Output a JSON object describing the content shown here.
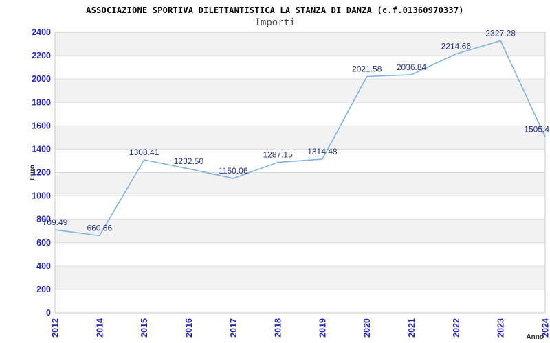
{
  "chart_data": {
    "type": "line",
    "title": "ASSOCIAZIONE SPORTIVA DILETTANTISTICA LA STANZA DI DANZA (c.f.01360970337)",
    "subtitle": "Importi",
    "xlabel": "Anno",
    "ylabel": "Euro",
    "categories": [
      "2012",
      "2014",
      "2015",
      "2016",
      "2017",
      "2018",
      "2019",
      "2020",
      "2021",
      "2022",
      "2023",
      "2024"
    ],
    "values": [
      709.49,
      660.66,
      1308.41,
      1232.5,
      1150.06,
      1287.15,
      1314.48,
      2021.58,
      2036.84,
      2214.66,
      2327.28,
      1505.4
    ],
    "point_labels": [
      "709.49",
      "660.66",
      "1308.41",
      "1232.50",
      "1150.06",
      "1287.15",
      "1314.48",
      "2021.58",
      "2036.84",
      "2214.66",
      "2327.28",
      "1505.4"
    ],
    "ylim": [
      0,
      2400
    ],
    "ytick_step": 200,
    "ytick_labels": [
      "0",
      "200",
      "400",
      "600",
      "800",
      "1000",
      "1200",
      "1400",
      "1600",
      "1800",
      "2000",
      "2200",
      "2400"
    ],
    "grid": true,
    "legend_position": "none",
    "colors": {
      "line": "#7db1e8",
      "tick_label": "#2424cc",
      "point_label": "#28308f",
      "band": "#f2f2f2",
      "gridline": "#dcdcdc",
      "plot_border": "#c8c8c8",
      "title": "#000000",
      "subtitle": "#4a4a4a",
      "axis_title": "#333333",
      "background": "#ffffff"
    }
  }
}
